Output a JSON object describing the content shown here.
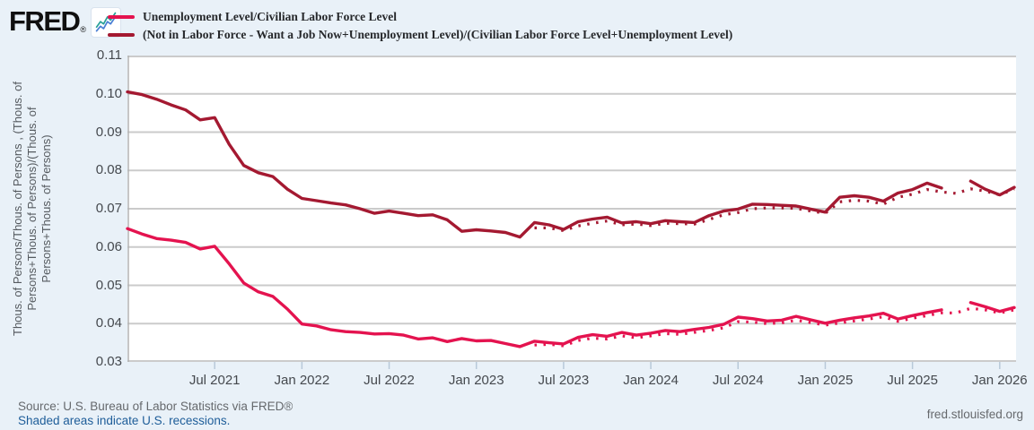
{
  "header": {
    "logo_text": "FRED",
    "logo_registered": "®",
    "legend": [
      {
        "label": "Unemployment Level/Civilian Labor Force Level",
        "color": "#e4134f",
        "style": "solid"
      },
      {
        "label": "(Not in Labor Force - Want a Job Now+Unemployment Level)/(Civilian Labor Force Level+Unemployment Level)",
        "color": "#a41931",
        "style": "solid"
      }
    ]
  },
  "y_axis": {
    "title_lines": [
      "Thous. of Persons/Thous. of Persons , (Thous. of",
      "Persons+Thous. of Persons)/(Thous. of",
      "Persons+Thous. of Persons)"
    ],
    "ticks": [
      "0.11",
      "0.10",
      "0.09",
      "0.08",
      "0.07",
      "0.06",
      "0.05",
      "0.04",
      "0.03"
    ],
    "min": 0.03,
    "max": 0.11
  },
  "x_axis": {
    "ticks": [
      {
        "label": "Jul 2021",
        "month": "2021-07"
      },
      {
        "label": "Jan 2022",
        "month": "2022-01"
      },
      {
        "label": "Jul 2022",
        "month": "2022-07"
      },
      {
        "label": "Jan 2023",
        "month": "2023-01"
      },
      {
        "label": "Jul 2023",
        "month": "2023-07"
      },
      {
        "label": "Jan 2024",
        "month": "2024-01"
      },
      {
        "label": "Jul 2024",
        "month": "2024-07"
      },
      {
        "label": "Jan 2025",
        "month": "2025-01"
      },
      {
        "label": "Jul 2025",
        "month": "2025-07"
      },
      {
        "label": "Jan 2026",
        "month": "2026-01"
      }
    ]
  },
  "footer": {
    "source": "Source: U.S. Bureau of Labor Statistics via FRED®",
    "recessions_note": "Shaded areas indicate U.S. recessions.",
    "site": "fred.stlouisfed.org"
  },
  "chart_data": {
    "type": "line",
    "frequency": "monthly",
    "grid": "horizontal",
    "legend_position": "top",
    "ylim": [
      0.03,
      0.11
    ],
    "note_data_gap": "2025-10",
    "months": [
      "2021-01",
      "2021-02",
      "2021-03",
      "2021-04",
      "2021-05",
      "2021-06",
      "2021-07",
      "2021-08",
      "2021-09",
      "2021-10",
      "2021-11",
      "2021-12",
      "2022-01",
      "2022-02",
      "2022-03",
      "2022-04",
      "2022-05",
      "2022-06",
      "2022-07",
      "2022-08",
      "2022-09",
      "2022-10",
      "2022-11",
      "2022-12",
      "2023-01",
      "2023-02",
      "2023-03",
      "2023-04",
      "2023-05",
      "2023-06",
      "2023-07",
      "2023-08",
      "2023-09",
      "2023-10",
      "2023-11",
      "2023-12",
      "2024-01",
      "2024-02",
      "2024-03",
      "2024-04",
      "2024-05",
      "2024-06",
      "2024-07",
      "2024-08",
      "2024-09",
      "2024-10",
      "2024-11",
      "2024-12",
      "2025-01",
      "2025-02",
      "2025-03",
      "2025-04",
      "2025-05",
      "2025-06",
      "2025-07",
      "2025-08",
      "2025-09",
      "2025-10",
      "2025-11",
      "2025-12",
      "2026-01",
      "2026-02"
    ],
    "series": [
      {
        "name": "(Not in Labor Force - Want a Job Now+Unemployment Level)/(Civilian Labor Force Level+Unemployment Level) (dotted)",
        "color": "#a41931",
        "style": "dotted",
        "values": [
          null,
          null,
          null,
          null,
          null,
          null,
          null,
          null,
          null,
          null,
          null,
          null,
          null,
          null,
          null,
          null,
          null,
          null,
          null,
          null,
          null,
          null,
          null,
          null,
          null,
          null,
          null,
          null,
          0.065,
          0.065,
          0.0643,
          0.0655,
          0.0662,
          0.0668,
          0.0658,
          0.066,
          0.0656,
          0.0662,
          0.0661,
          0.066,
          0.0672,
          0.0684,
          0.069,
          0.07,
          0.0702,
          0.0702,
          0.0701,
          0.0694,
          0.0688,
          0.0718,
          0.0722,
          0.072,
          0.0712,
          0.073,
          0.0738,
          0.075,
          0.0744,
          0.074,
          0.0752,
          0.0746,
          0.0736,
          0.0752
        ]
      },
      {
        "name": "Unemployment Level/Civilian Labor Force Level (dotted)",
        "color": "#e4134f",
        "style": "dotted",
        "values": [
          null,
          null,
          null,
          null,
          null,
          null,
          null,
          null,
          null,
          null,
          null,
          null,
          null,
          null,
          null,
          null,
          null,
          null,
          null,
          null,
          null,
          null,
          null,
          null,
          null,
          null,
          null,
          null,
          0.0344,
          0.0346,
          0.0342,
          0.0356,
          0.0362,
          0.036,
          0.0368,
          0.0363,
          0.0368,
          0.0374,
          0.0372,
          0.0377,
          0.0382,
          0.0389,
          0.0405,
          0.0404,
          0.04,
          0.0402,
          0.0409,
          0.0403,
          0.0396,
          0.0402,
          0.0407,
          0.0412,
          0.0418,
          0.0406,
          0.0414,
          0.0421,
          0.0428,
          0.0428,
          0.044,
          0.0436,
          0.0428,
          0.0436
        ]
      },
      {
        "name": "(Not in Labor Force - Want a Job Now+Unemployment Level)/(Civilian Labor Force Level+Unemployment Level)",
        "color": "#a41931",
        "style": "solid",
        "values": [
          0.1005,
          0.0998,
          0.0986,
          0.0971,
          0.0958,
          0.0932,
          0.0938,
          0.0868,
          0.0813,
          0.0794,
          0.0784,
          0.0751,
          0.0727,
          0.0721,
          0.0715,
          0.071,
          0.07,
          0.0688,
          0.0694,
          0.0688,
          0.0682,
          0.0684,
          0.0671,
          0.0641,
          0.0645,
          0.0642,
          0.0638,
          0.0626,
          0.0664,
          0.0658,
          0.0646,
          0.0666,
          0.0673,
          0.0678,
          0.0663,
          0.0666,
          0.0661,
          0.0669,
          0.0666,
          0.0664,
          0.0682,
          0.0694,
          0.0699,
          0.0712,
          0.0711,
          0.0709,
          0.0707,
          0.0699,
          0.0691,
          0.073,
          0.0734,
          0.073,
          0.072,
          0.0741,
          0.075,
          0.0767,
          0.0754,
          null,
          0.0772,
          0.0751,
          0.0736,
          0.0756
        ]
      },
      {
        "name": "Unemployment Level/Civilian Labor Force Level",
        "color": "#e4134f",
        "style": "solid",
        "values": [
          0.0648,
          0.0634,
          0.0622,
          0.0618,
          0.0612,
          0.0595,
          0.0602,
          0.0556,
          0.0506,
          0.0483,
          0.0471,
          0.0438,
          0.0399,
          0.0394,
          0.0384,
          0.0379,
          0.0377,
          0.0373,
          0.0374,
          0.037,
          0.036,
          0.0363,
          0.0353,
          0.0361,
          0.0355,
          0.0356,
          0.0348,
          0.034,
          0.0354,
          0.035,
          0.0347,
          0.0364,
          0.0371,
          0.0367,
          0.0377,
          0.037,
          0.0375,
          0.0382,
          0.0379,
          0.0385,
          0.039,
          0.0398,
          0.0417,
          0.0413,
          0.0407,
          0.0409,
          0.0419,
          0.041,
          0.0401,
          0.0409,
          0.0415,
          0.042,
          0.0427,
          0.0412,
          0.0421,
          0.0429,
          0.0436,
          null,
          0.0455,
          0.0444,
          0.0432,
          0.0442
        ]
      }
    ]
  }
}
